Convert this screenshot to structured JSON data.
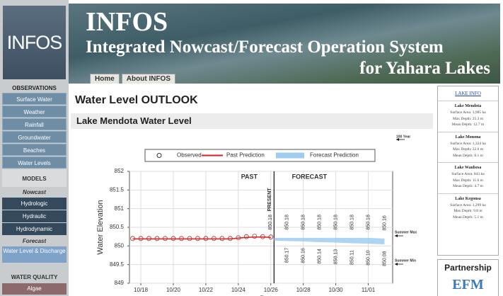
{
  "header": {
    "logo": "INFOS",
    "title": "INFOS",
    "subtitle": "Integrated Nowcast/Forecast Operation System",
    "subtitle2": "for Yahara Lakes",
    "nav": [
      "Home",
      "About INFOS"
    ]
  },
  "sidebar": [
    {
      "text": "OBSERVATIONS",
      "kind": "heading"
    },
    {
      "text": "Surface Water",
      "kind": "button"
    },
    {
      "text": "Weather",
      "kind": "button"
    },
    {
      "text": "Rainfall",
      "kind": "button"
    },
    {
      "text": "Groundwater",
      "kind": "button"
    },
    {
      "text": "Beaches",
      "kind": "button"
    },
    {
      "text": "Water Levels",
      "kind": "button"
    },
    {
      "text": "MODELS",
      "kind": "section"
    },
    {
      "text": "Nowcast",
      "kind": "subheading"
    },
    {
      "text": "Hydrologic",
      "kind": "dark-button"
    },
    {
      "text": "Hydraulic",
      "kind": "dark-button"
    },
    {
      "text": "Hydrodynamic",
      "kind": "dark-button"
    },
    {
      "text": "Forecast",
      "kind": "subheading"
    },
    {
      "text": "Water Level & Discharge",
      "kind": "light-button"
    },
    {
      "text": "WATER QUALITY",
      "kind": "section tall"
    },
    {
      "text": "Algae",
      "kind": "alert-button"
    }
  ],
  "main": {
    "heading": "Water Level OUTLOOK",
    "section": "Lake Mendota Water Level"
  },
  "chart_data": {
    "type": "line",
    "y_label": "Water Elevation",
    "x_label": "Date",
    "xlim": [
      17.3,
      33.5
    ],
    "xticks": [
      {
        "value": 18,
        "label": "10/18"
      },
      {
        "value": 20,
        "label": "10/20"
      },
      {
        "value": 22,
        "label": "10/22"
      },
      {
        "value": 24,
        "label": "10/24"
      },
      {
        "value": 26,
        "label": "10/26"
      },
      {
        "value": 28,
        "label": "10/28"
      },
      {
        "value": 30,
        "label": "10/30"
      },
      {
        "value": 32,
        "label": "11/01"
      }
    ],
    "ylim": [
      849,
      852
    ],
    "yticks": [
      849,
      849.5,
      850,
      850.5,
      851,
      851.5,
      852
    ],
    "grid": true,
    "series": [
      {
        "name": "Observed",
        "kind": "markers",
        "color": "#b52a2a",
        "x": [
          17.5,
          18,
          18.5,
          19,
          19.5,
          20,
          20.5,
          21,
          21.5,
          22,
          22.5,
          23,
          23.5,
          24,
          24.5,
          25,
          25.5,
          26
        ],
        "values": [
          850.2,
          850.2,
          850.2,
          850.2,
          850.2,
          850.2,
          850.2,
          850.2,
          850.2,
          850.2,
          850.2,
          850.2,
          850.2,
          850.22,
          850.25,
          850.26,
          850.25,
          850.24
        ]
      },
      {
        "name": "Past Prediction",
        "kind": "line",
        "color": "#d42020",
        "x": [
          17.5,
          18,
          18.5,
          19,
          19.5,
          20,
          20.5,
          21,
          21.5,
          22,
          22.5,
          23,
          23.5,
          24,
          24.5,
          25,
          25.5,
          26
        ],
        "values": [
          850.19,
          850.19,
          850.19,
          850.19,
          850.19,
          850.19,
          850.19,
          850.19,
          850.19,
          850.19,
          850.19,
          850.19,
          850.19,
          850.21,
          850.23,
          850.24,
          850.24,
          850.23
        ]
      },
      {
        "name": "Forecast Prediction",
        "kind": "band",
        "color": "#9fcdf0",
        "x": [
          26.2,
          27,
          28,
          29,
          30,
          31,
          32,
          33
        ],
        "upper": [
          850.18,
          850.18,
          850.18,
          850.18,
          850.18,
          850.18,
          850.18,
          850.16
        ],
        "upper_labels": [
          "850.18",
          "850.18",
          "850.18",
          "850.18",
          "850.18",
          "850.18",
          "850.18",
          "850.16"
        ],
        "lower": [
          850.18,
          850.17,
          850.16,
          850.14,
          850.13,
          850.11,
          850.1,
          850.08
        ],
        "lower_labels": [
          null,
          "850.17",
          "850.16",
          "850.14",
          "850.13",
          "850.11",
          "850.10",
          "850.08"
        ]
      }
    ],
    "present_x": 26.2,
    "annotations": [
      "PAST",
      "FORECAST",
      "PRESENT",
      "100 Year",
      "Summer Max",
      "Summer Min"
    ]
  },
  "lake_info": {
    "title": "LAKE INFO",
    "lakes": [
      {
        "name": "Lake Mendota",
        "facts": [
          "Surface Area: 3,985 ha",
          "Max Depth: 25.3 m",
          "Mean Depth: 12.7 m"
        ]
      },
      {
        "name": "Lake Monona",
        "facts": [
          "Surface Area: 1,324 ha",
          "Max Depth: 22.6 m",
          "Mean Depth: 8.1 m"
        ]
      },
      {
        "name": "Lake Waubesa",
        "facts": [
          "Surface Area: 843 ha",
          "Max Depth: 11.6 m",
          "Mean Depth: 4.7 m"
        ]
      },
      {
        "name": "Lake Kegonsa",
        "facts": [
          "Surface Area: 1,299 ha",
          "Max Depth: 9.8 m",
          "Mean Depth: 5.1 m"
        ]
      }
    ]
  },
  "partnership": {
    "title": "Partnership",
    "logo": "EFM"
  }
}
